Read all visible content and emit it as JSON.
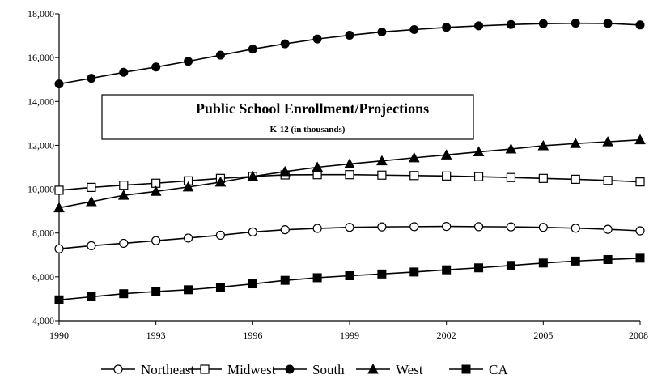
{
  "chart_data": {
    "type": "line",
    "title": "Public School Enrollment/Projections",
    "subtitle": "K-12 (in thousands)",
    "x": [
      1990,
      1991,
      1992,
      1993,
      1994,
      1995,
      1996,
      1997,
      1998,
      1999,
      2000,
      2001,
      2002,
      2003,
      2004,
      2005,
      2006,
      2007,
      2008
    ],
    "xticks": [
      "1990",
      "1993",
      "1996",
      "1999",
      "2002",
      "2005",
      "2008"
    ],
    "yticks": [
      "4,000",
      "6,000",
      "8,000",
      "10,000",
      "12,000",
      "14,000",
      "16,000",
      "18,000"
    ],
    "ylim": [
      4000,
      18000
    ],
    "xlim": [
      1990,
      2008
    ],
    "grid": false,
    "legend_position": "bottom",
    "series": [
      {
        "name": "Northeast",
        "marker": "open-circle",
        "values": [
          7280,
          7420,
          7530,
          7650,
          7770,
          7900,
          8050,
          8150,
          8210,
          8260,
          8280,
          8290,
          8300,
          8290,
          8280,
          8260,
          8220,
          8170,
          8100
        ]
      },
      {
        "name": "Midwest",
        "marker": "open-square",
        "values": [
          9950,
          10080,
          10180,
          10270,
          10380,
          10490,
          10580,
          10650,
          10660,
          10660,
          10640,
          10620,
          10600,
          10570,
          10530,
          10490,
          10450,
          10400,
          10330
        ]
      },
      {
        "name": "South",
        "marker": "filled-circle",
        "values": [
          14800,
          15060,
          15330,
          15570,
          15830,
          16110,
          16390,
          16630,
          16850,
          17020,
          17170,
          17280,
          17380,
          17450,
          17510,
          17550,
          17570,
          17560,
          17490
        ]
      },
      {
        "name": "West",
        "marker": "filled-triangle",
        "values": [
          9150,
          9430,
          9720,
          9900,
          10100,
          10320,
          10580,
          10800,
          11000,
          11150,
          11290,
          11430,
          11560,
          11700,
          11830,
          11980,
          12080,
          12160,
          12250
        ]
      },
      {
        "name": "CA",
        "marker": "filled-square",
        "values": [
          4950,
          5090,
          5230,
          5330,
          5410,
          5530,
          5680,
          5840,
          5960,
          6050,
          6130,
          6220,
          6320,
          6410,
          6520,
          6630,
          6720,
          6790,
          6850
        ]
      }
    ]
  }
}
